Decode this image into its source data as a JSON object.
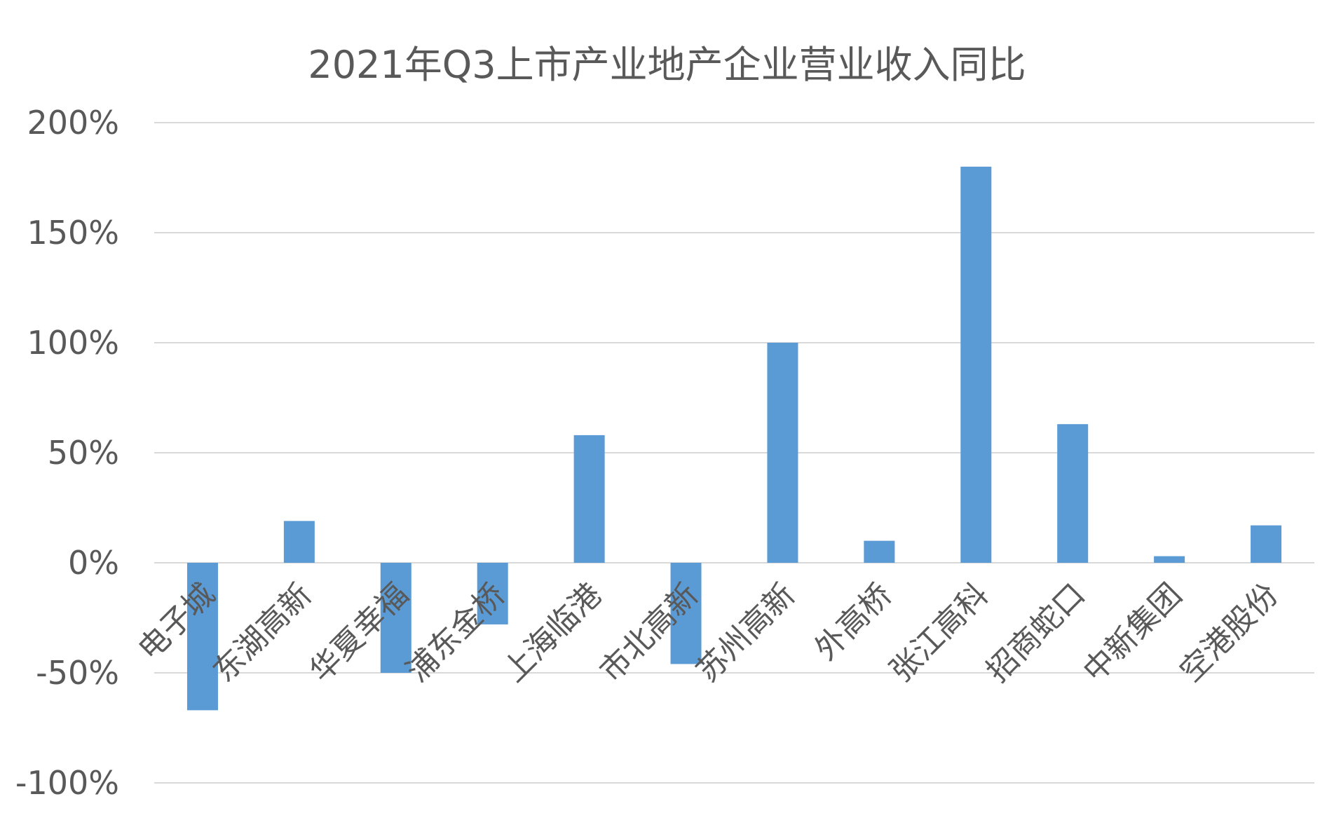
{
  "chart_data": {
    "type": "bar",
    "title": "2021年Q3上市产业地产企业营业收入同比",
    "categories": [
      "电子城",
      "东湖高新",
      "华夏幸福",
      "浦东金桥",
      "上海临港",
      "市北高新",
      "苏州高新",
      "外高桥",
      "张江高科",
      "招商蛇口",
      "中新集团",
      "空港股份"
    ],
    "series": [
      {
        "values": [
          -67,
          19,
          -50,
          -28,
          58,
          -46,
          100,
          10,
          180,
          63,
          3,
          17
        ]
      }
    ],
    "ylim": [
      -100,
      200
    ],
    "yticks": [
      -100,
      -50,
      0,
      50,
      100,
      150,
      200
    ],
    "ytick_labels": [
      "-100%",
      "-50%",
      "0%",
      "50%",
      "100%",
      "150%",
      "200%"
    ],
    "xlabel": "",
    "ylabel": "",
    "grid": true,
    "legend": "none",
    "bar_color": "#5b9bd5"
  }
}
